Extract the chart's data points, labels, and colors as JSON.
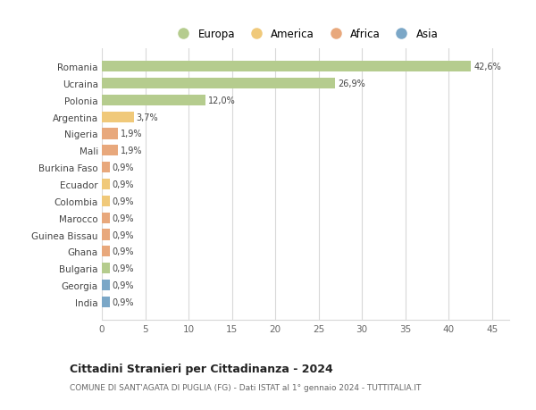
{
  "countries": [
    "Romania",
    "Ucraina",
    "Polonia",
    "Argentina",
    "Nigeria",
    "Mali",
    "Burkina Faso",
    "Ecuador",
    "Colombia",
    "Marocco",
    "Guinea Bissau",
    "Ghana",
    "Bulgaria",
    "Georgia",
    "India"
  ],
  "values": [
    42.6,
    26.9,
    12.0,
    3.7,
    1.9,
    1.9,
    0.9,
    0.9,
    0.9,
    0.9,
    0.9,
    0.9,
    0.9,
    0.9,
    0.9
  ],
  "labels": [
    "42,6%",
    "26,9%",
    "12,0%",
    "3,7%",
    "1,9%",
    "1,9%",
    "0,9%",
    "0,9%",
    "0,9%",
    "0,9%",
    "0,9%",
    "0,9%",
    "0,9%",
    "0,9%",
    "0,9%"
  ],
  "continents": [
    "Europa",
    "Europa",
    "Europa",
    "America",
    "Africa",
    "Africa",
    "Africa",
    "America",
    "America",
    "Africa",
    "Africa",
    "Africa",
    "Europa",
    "Asia",
    "Asia"
  ],
  "continent_colors": {
    "Europa": "#b5cc8e",
    "America": "#f0c97a",
    "Africa": "#e8a87c",
    "Asia": "#7ba7c7"
  },
  "legend_labels": [
    "Europa",
    "America",
    "Africa",
    "Asia"
  ],
  "legend_colors": [
    "#b5cc8e",
    "#f0c97a",
    "#e8a87c",
    "#7ba7c7"
  ],
  "title1": "Cittadini Stranieri per Cittadinanza - 2024",
  "title2": "COMUNE DI SANT'AGATA DI PUGLIA (FG) - Dati ISTAT al 1° gennaio 2024 - TUTTITALIA.IT",
  "xlim": [
    0,
    47
  ],
  "xticks": [
    0,
    5,
    10,
    15,
    20,
    25,
    30,
    35,
    40,
    45
  ],
  "background_color": "#ffffff",
  "grid_color": "#d8d8d8",
  "bar_height": 0.65
}
